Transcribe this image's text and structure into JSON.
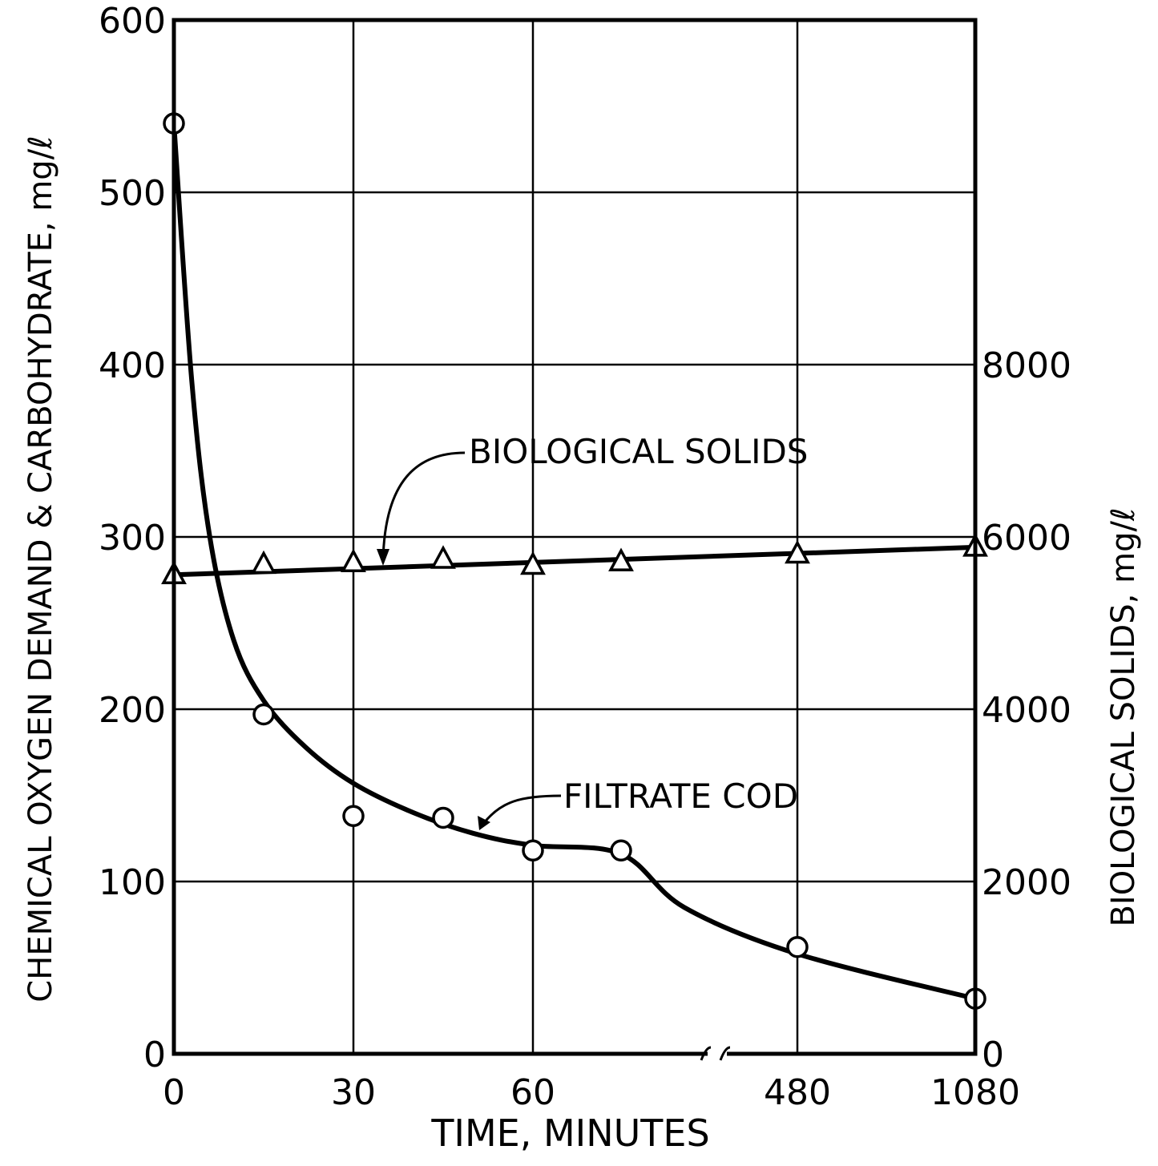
{
  "chart_data": {
    "type": "line",
    "xlabel": "TIME, MINUTES",
    "ylabel": "CHEMICAL OXYGEN DEMAND & CARBOHYDRATE, mg/ℓ",
    "y2label": "BIOLOGICAL SOLIDS, mg/ℓ",
    "x_ticks": [
      "0",
      "30",
      "60",
      "480",
      "1080"
    ],
    "y_ticks": [
      "0",
      "100",
      "200",
      "300",
      "400",
      "500",
      "600"
    ],
    "y2_ticks": [
      "0",
      "2000",
      "4000",
      "6000",
      "8000"
    ],
    "ylim": [
      0,
      600
    ],
    "y2lim": [
      0,
      12000
    ],
    "x_axis_break": "between 60 and 480 minutes",
    "grid": true,
    "series": [
      {
        "name": "FILTRATE COD",
        "axis": "left",
        "marker": "circle",
        "x": [
          0,
          15,
          30,
          45,
          60,
          75,
          480,
          1080
        ],
        "y": [
          540,
          197,
          138,
          137,
          118,
          118,
          62,
          32
        ]
      },
      {
        "name": "BIOLOGICAL SOLIDS",
        "axis": "right",
        "marker": "triangle",
        "x": [
          0,
          15,
          30,
          45,
          60,
          75,
          480,
          1080
        ],
        "y": [
          5560,
          5680,
          5700,
          5740,
          5670,
          5710,
          5800,
          5880
        ]
      }
    ]
  }
}
